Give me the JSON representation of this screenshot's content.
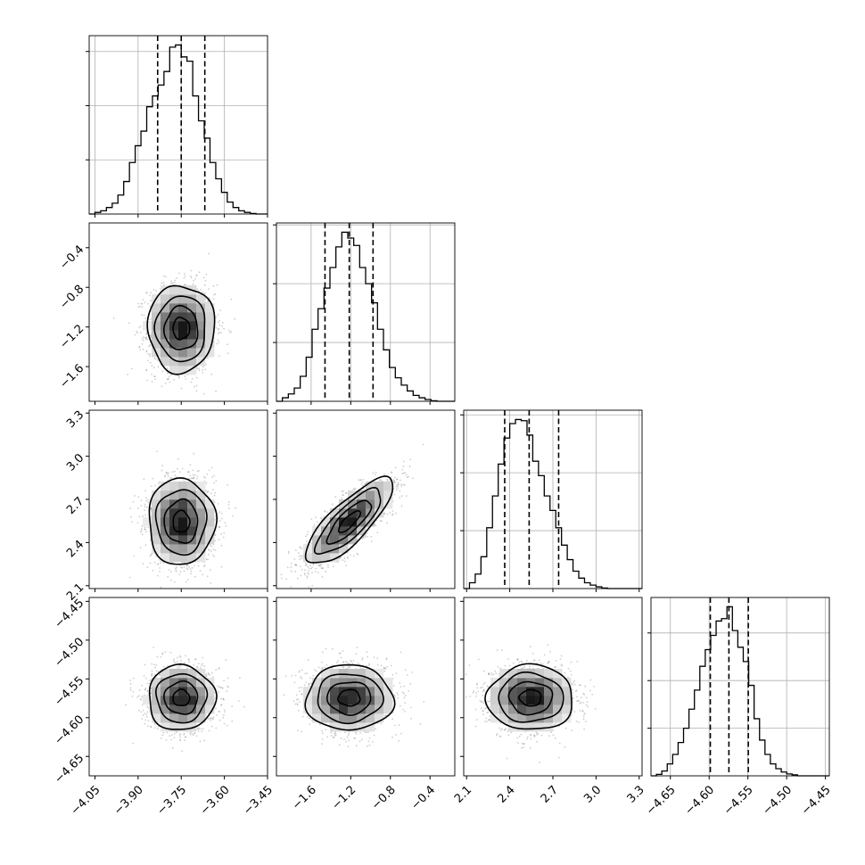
{
  "chart_data": {
    "type": "corner",
    "title": "",
    "grid": true,
    "parameters": [
      {
        "range": [
          -4.07,
          -3.45
        ],
        "ticks": [
          -4.05,
          -3.9,
          -3.75,
          -3.6,
          -3.45
        ],
        "tick_labels": [
          "−4.05",
          "−3.90",
          "−3.75",
          "−3.60",
          "−3.45"
        ],
        "quantiles": [
          -3.832,
          -3.75,
          -3.668
        ],
        "hist": {
          "bin_edges": [
            -4.07,
            -4.05,
            -4.03,
            -4.01,
            -3.99,
            -3.97,
            -3.95,
            -3.93,
            -3.91,
            -3.89,
            -3.87,
            -3.85,
            -3.83,
            -3.81,
            -3.79,
            -3.77,
            -3.75,
            -3.73,
            -3.71,
            -3.69,
            -3.67,
            -3.65,
            -3.63,
            -3.61,
            -3.59,
            -3.57,
            -3.55,
            -3.53,
            -3.51,
            -3.49,
            -3.47,
            -3.45
          ],
          "counts": [
            0,
            0.3,
            0.6,
            1.2,
            2.0,
            3.5,
            6.0,
            9.5,
            12.6,
            15.3,
            19.8,
            21.8,
            23.8,
            26.3,
            30.8,
            31.2,
            29.0,
            28.2,
            21.8,
            17.2,
            14.0,
            9.5,
            6.5,
            4.0,
            2.2,
            1.2,
            0.6,
            0.3,
            0.1,
            0,
            0
          ],
          "ytick_values": [
            10,
            20,
            30
          ]
        }
      },
      {
        "range": [
          -1.95,
          -0.15
        ],
        "ticks": [
          -1.6,
          -1.2,
          -0.8,
          -0.4
        ],
        "tick_labels": [
          "−1.6",
          "−1.2",
          "−0.8",
          "−0.4"
        ],
        "quantiles": [
          -1.46,
          -1.215,
          -0.975
        ],
        "hist": {
          "bin_edges": [
            -1.95,
            -1.89,
            -1.83,
            -1.77,
            -1.71,
            -1.65,
            -1.59,
            -1.53,
            -1.47,
            -1.41,
            -1.35,
            -1.29,
            -1.23,
            -1.17,
            -1.11,
            -1.05,
            -0.99,
            -0.93,
            -0.87,
            -0.81,
            -0.75,
            -0.69,
            -0.63,
            -0.57,
            -0.51,
            -0.45,
            -0.39,
            -0.33,
            -0.27,
            -0.21,
            -0.15
          ],
          "counts": [
            0,
            1.2,
            2.5,
            4.5,
            8.5,
            15.0,
            24.5,
            31.5,
            38.5,
            45.5,
            52.5,
            57.5,
            55.5,
            53.0,
            45.5,
            40.0,
            33.5,
            24.5,
            17.5,
            11.5,
            8.0,
            5.5,
            3.5,
            2.0,
            1.2,
            0.6,
            0.2,
            0,
            0,
            0
          ],
          "ytick_values": [
            20,
            40,
            60
          ]
        }
      },
      {
        "range": [
          2.08,
          3.32
        ],
        "ticks": [
          2.1,
          2.4,
          2.7,
          3.0,
          3.3
        ],
        "tick_labels": [
          "2.1",
          "2.4",
          "2.7",
          "3.0",
          "3.3"
        ],
        "quantiles": [
          2.365,
          2.535,
          2.74
        ],
        "hist": {
          "bin_edges": [
            2.08,
            2.12,
            2.16,
            2.2,
            2.24,
            2.28,
            2.32,
            2.36,
            2.4,
            2.44,
            2.48,
            2.52,
            2.56,
            2.6,
            2.64,
            2.68,
            2.72,
            2.76,
            2.8,
            2.84,
            2.88,
            2.92,
            2.96,
            3.0,
            3.04,
            3.08,
            3.12,
            3.16,
            3.2,
            3.24,
            3.28,
            3.32
          ],
          "counts": [
            0,
            1.0,
            2.5,
            5.5,
            10.5,
            16.0,
            21.5,
            26.0,
            28.5,
            29.2,
            29.0,
            26.5,
            22.0,
            19.5,
            16.0,
            13.5,
            10.5,
            7.5,
            5.0,
            3.0,
            1.8,
            1.0,
            0.6,
            0.3,
            0.1,
            0,
            0,
            0,
            0,
            0,
            0
          ],
          "ytick_values": [
            10,
            20,
            30
          ]
        }
      },
      {
        "range": [
          -4.675,
          -4.445
        ],
        "ticks": [
          -4.65,
          -4.6,
          -4.55,
          -4.5,
          -4.45
        ],
        "tick_labels": [
          "−4.65",
          "−4.60",
          "−4.55",
          "−4.50",
          "−4.45"
        ],
        "quantiles": [
          -4.5985,
          -4.5745,
          -4.5495
        ],
        "hist": {
          "bin_edges": [
            -4.675,
            -4.668,
            -4.661,
            -4.654,
            -4.647,
            -4.64,
            -4.633,
            -4.626,
            -4.619,
            -4.612,
            -4.605,
            -4.598,
            -4.591,
            -4.584,
            -4.577,
            -4.57,
            -4.563,
            -4.556,
            -4.549,
            -4.542,
            -4.535,
            -4.528,
            -4.521,
            -4.514,
            -4.507,
            -4.5,
            -4.493,
            -4.486,
            -4.479,
            -4.472,
            -4.465,
            -4.458,
            -4.451,
            -4.445
          ],
          "counts": [
            0,
            0.3,
            1.0,
            2.5,
            4.5,
            7.0,
            10.0,
            14.0,
            18.0,
            23.0,
            26.5,
            29.5,
            32.5,
            33.0,
            35.5,
            30.5,
            27.0,
            24.0,
            19.0,
            12.0,
            7.5,
            4.5,
            2.5,
            1.5,
            0.8,
            0.4,
            0.2,
            0,
            0,
            0,
            0,
            0,
            0
          ],
          "ytick_values": [
            10,
            20,
            30
          ]
        }
      }
    ],
    "pairs": [
      {
        "x_param": 0,
        "y_param": 1,
        "center": [
          -3.75,
          -1.215
        ],
        "sd": [
          0.058,
          0.22
        ],
        "corr": 0.0
      },
      {
        "x_param": 0,
        "y_param": 2,
        "center": [
          -3.75,
          2.545
        ],
        "sd": [
          0.058,
          0.15
        ],
        "corr": 0.0
      },
      {
        "x_param": 1,
        "y_param": 2,
        "center": [
          -1.215,
          2.545
        ],
        "sd": [
          0.22,
          0.15
        ],
        "corr": 0.8
      },
      {
        "x_param": 0,
        "y_param": 3,
        "center": [
          -3.75,
          -4.5745
        ],
        "sd": [
          0.058,
          0.021
        ],
        "corr": 0.0
      },
      {
        "x_param": 1,
        "y_param": 3,
        "center": [
          -1.215,
          -4.5745
        ],
        "sd": [
          0.22,
          0.021
        ],
        "corr": 0.0
      },
      {
        "x_param": 2,
        "y_param": 3,
        "center": [
          2.545,
          -4.5745
        ],
        "sd": [
          0.15,
          0.021
        ],
        "corr": 0.0
      }
    ],
    "contour_sigma_levels": [
      0.5,
      1.0,
      1.5,
      2.0
    ],
    "colors": {
      "line": "#000000",
      "grid": "#b0b0b0",
      "points": "#7f7f7f",
      "density_dark": "#000000",
      "background": "#ffffff"
    }
  }
}
